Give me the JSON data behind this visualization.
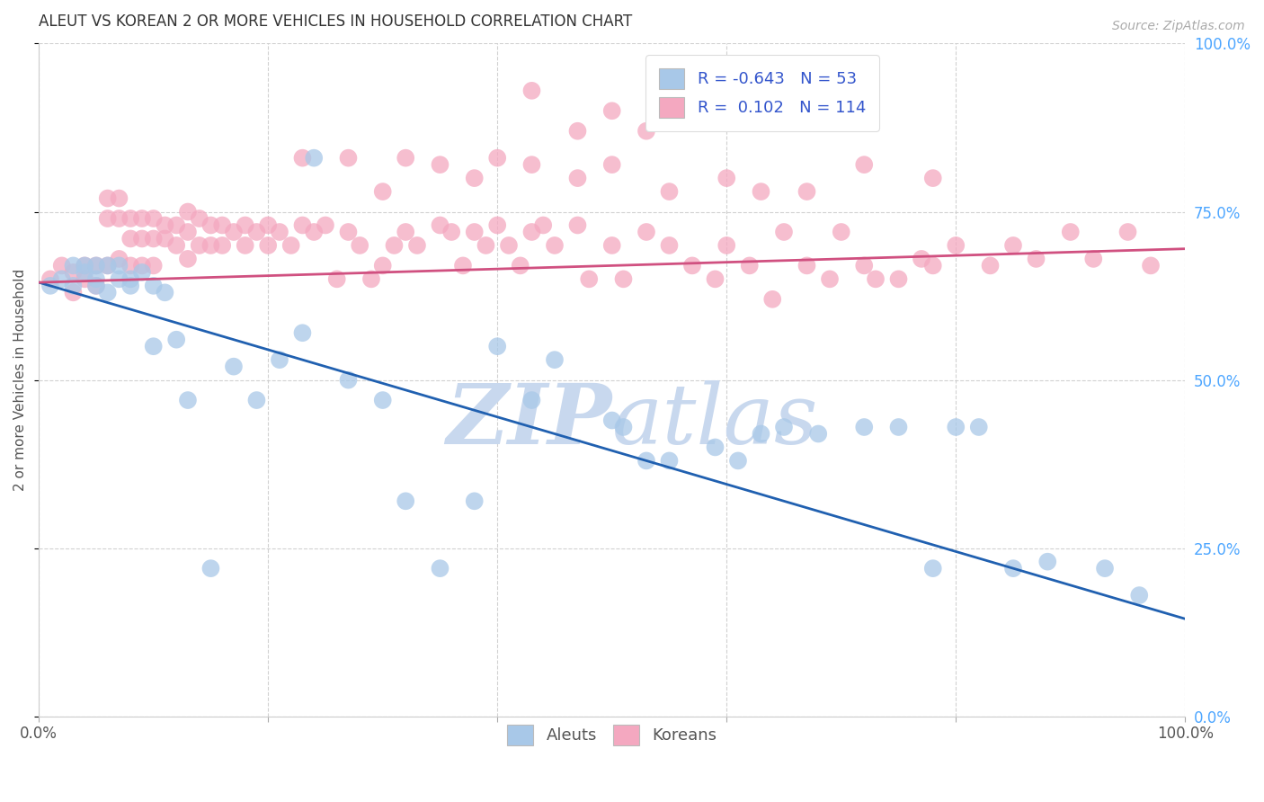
{
  "title": "ALEUT VS KOREAN 2 OR MORE VEHICLES IN HOUSEHOLD CORRELATION CHART",
  "source": "Source: ZipAtlas.com",
  "ylabel": "2 or more Vehicles in Household",
  "xlim": [
    0,
    1
  ],
  "ylim": [
    0,
    1
  ],
  "ytick_positions": [
    0.0,
    0.25,
    0.5,
    0.75,
    1.0
  ],
  "xtick_positions": [
    0.0,
    0.2,
    0.4,
    0.6,
    0.8,
    1.0
  ],
  "legend_r_aleut": "-0.643",
  "legend_n_aleut": "53",
  "legend_r_korean": "0.102",
  "legend_n_korean": "114",
  "aleut_color": "#a8c8e8",
  "korean_color": "#f4a8c0",
  "aleut_line_color": "#2060b0",
  "korean_line_color": "#d05080",
  "background_color": "#ffffff",
  "grid_color": "#cccccc",
  "title_color": "#333333",
  "watermark_color_zip": "#c8d8ee",
  "watermark_color_atlas": "#c8d8ee",
  "right_tick_color": "#4da6ff",
  "aleut_line": {
    "x0": 0.0,
    "y0": 0.645,
    "x1": 1.0,
    "y1": 0.145
  },
  "korean_line": {
    "x0": 0.0,
    "y0": 0.645,
    "x1": 1.0,
    "y1": 0.695
  },
  "aleuts_x": [
    0.01,
    0.02,
    0.03,
    0.03,
    0.04,
    0.04,
    0.05,
    0.05,
    0.05,
    0.06,
    0.06,
    0.07,
    0.07,
    0.08,
    0.08,
    0.09,
    0.1,
    0.1,
    0.11,
    0.12,
    0.13,
    0.15,
    0.17,
    0.19,
    0.21,
    0.23,
    0.24,
    0.27,
    0.3,
    0.32,
    0.35,
    0.38,
    0.4,
    0.43,
    0.45,
    0.5,
    0.51,
    0.53,
    0.55,
    0.59,
    0.61,
    0.63,
    0.65,
    0.68,
    0.72,
    0.75,
    0.78,
    0.8,
    0.82,
    0.85,
    0.88,
    0.93,
    0.96
  ],
  "aleuts_y": [
    0.64,
    0.65,
    0.67,
    0.64,
    0.67,
    0.66,
    0.65,
    0.64,
    0.67,
    0.63,
    0.67,
    0.65,
    0.67,
    0.64,
    0.65,
    0.66,
    0.64,
    0.55,
    0.63,
    0.56,
    0.47,
    0.22,
    0.52,
    0.47,
    0.53,
    0.57,
    0.83,
    0.5,
    0.47,
    0.32,
    0.22,
    0.32,
    0.55,
    0.47,
    0.53,
    0.44,
    0.43,
    0.38,
    0.38,
    0.4,
    0.38,
    0.42,
    0.43,
    0.42,
    0.43,
    0.43,
    0.22,
    0.43,
    0.43,
    0.22,
    0.23,
    0.22,
    0.18
  ],
  "koreans_x": [
    0.01,
    0.02,
    0.03,
    0.03,
    0.04,
    0.04,
    0.05,
    0.05,
    0.06,
    0.06,
    0.06,
    0.07,
    0.07,
    0.07,
    0.08,
    0.08,
    0.08,
    0.09,
    0.09,
    0.09,
    0.1,
    0.1,
    0.1,
    0.11,
    0.11,
    0.12,
    0.12,
    0.13,
    0.13,
    0.13,
    0.14,
    0.14,
    0.15,
    0.15,
    0.16,
    0.16,
    0.17,
    0.18,
    0.18,
    0.19,
    0.2,
    0.2,
    0.21,
    0.22,
    0.23,
    0.24,
    0.25,
    0.26,
    0.27,
    0.28,
    0.29,
    0.3,
    0.31,
    0.32,
    0.33,
    0.35,
    0.36,
    0.37,
    0.38,
    0.39,
    0.4,
    0.41,
    0.42,
    0.43,
    0.44,
    0.45,
    0.47,
    0.48,
    0.5,
    0.51,
    0.53,
    0.55,
    0.57,
    0.59,
    0.6,
    0.62,
    0.64,
    0.65,
    0.67,
    0.69,
    0.7,
    0.72,
    0.73,
    0.75,
    0.77,
    0.78,
    0.8,
    0.83,
    0.85,
    0.87,
    0.9,
    0.92,
    0.95,
    0.97,
    0.5,
    0.53,
    0.43,
    0.47,
    0.32,
    0.4,
    0.23,
    0.27,
    0.3,
    0.35,
    0.38,
    0.43,
    0.47,
    0.5,
    0.55,
    0.6,
    0.63,
    0.67,
    0.72,
    0.78
  ],
  "koreans_y": [
    0.65,
    0.67,
    0.63,
    0.66,
    0.65,
    0.67,
    0.67,
    0.64,
    0.77,
    0.74,
    0.67,
    0.77,
    0.74,
    0.68,
    0.74,
    0.71,
    0.67,
    0.74,
    0.71,
    0.67,
    0.74,
    0.71,
    0.67,
    0.73,
    0.71,
    0.73,
    0.7,
    0.75,
    0.72,
    0.68,
    0.74,
    0.7,
    0.73,
    0.7,
    0.73,
    0.7,
    0.72,
    0.73,
    0.7,
    0.72,
    0.73,
    0.7,
    0.72,
    0.7,
    0.73,
    0.72,
    0.73,
    0.65,
    0.72,
    0.7,
    0.65,
    0.67,
    0.7,
    0.72,
    0.7,
    0.73,
    0.72,
    0.67,
    0.72,
    0.7,
    0.73,
    0.7,
    0.67,
    0.72,
    0.73,
    0.7,
    0.73,
    0.65,
    0.7,
    0.65,
    0.72,
    0.7,
    0.67,
    0.65,
    0.7,
    0.67,
    0.62,
    0.72,
    0.67,
    0.65,
    0.72,
    0.67,
    0.65,
    0.65,
    0.68,
    0.67,
    0.7,
    0.67,
    0.7,
    0.68,
    0.72,
    0.68,
    0.72,
    0.67,
    0.9,
    0.87,
    0.93,
    0.87,
    0.83,
    0.83,
    0.83,
    0.83,
    0.78,
    0.82,
    0.8,
    0.82,
    0.8,
    0.82,
    0.78,
    0.8,
    0.78,
    0.78,
    0.82,
    0.8
  ]
}
